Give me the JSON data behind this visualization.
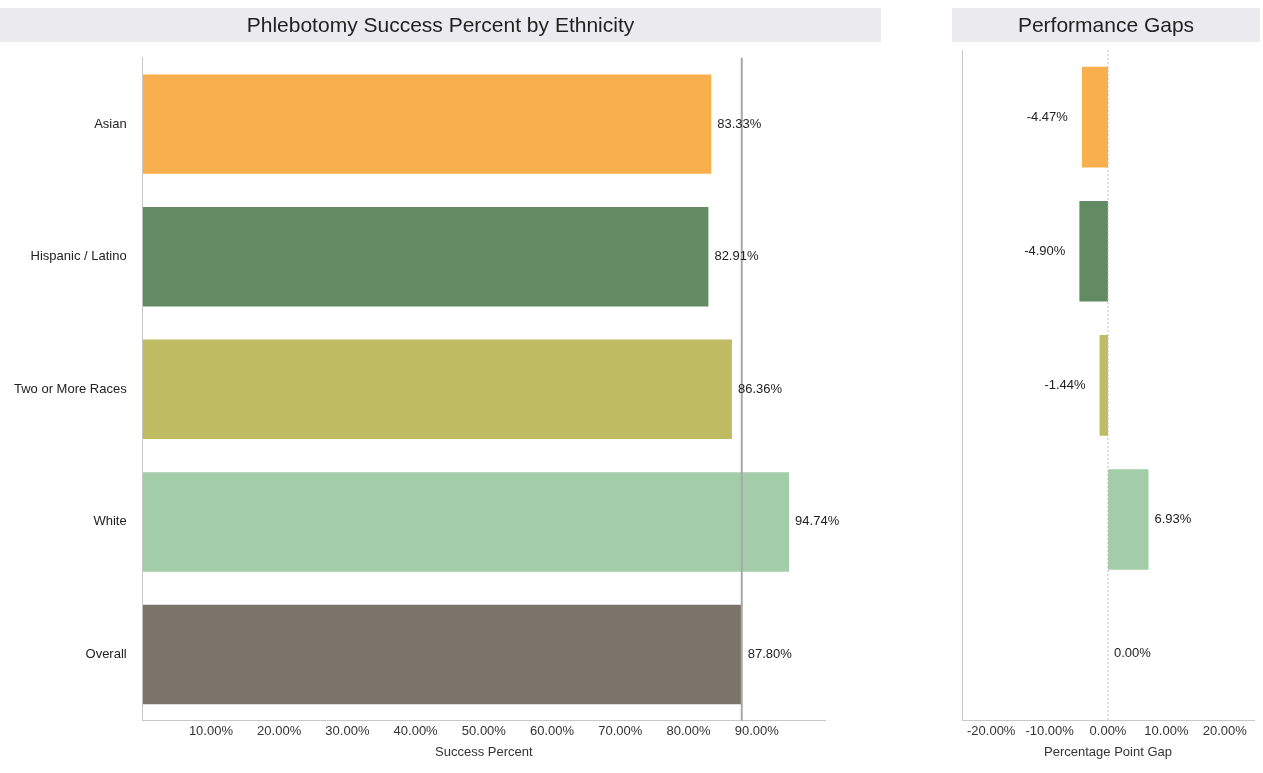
{
  "chart_data": [
    {
      "type": "bar",
      "orientation": "horizontal",
      "title": "Phlebotomy Success Percent by Ethnicity",
      "xlabel": "Success Percent",
      "categories": [
        "Asian",
        "Hispanic / Latino",
        "Two or More Races",
        "White",
        "Overall"
      ],
      "values": [
        83.33,
        82.91,
        86.36,
        94.74,
        87.8
      ],
      "colors": [
        "#f9af4d",
        "#628b64",
        "#bfbb62",
        "#a3cda9",
        "#7c746b"
      ],
      "value_labels": [
        "83.33%",
        "82.91%",
        "86.36%",
        "94.74%",
        "87.80%"
      ],
      "xlim": [
        0,
        100
      ],
      "xticks": [
        {
          "value": 10,
          "label": "10.00%"
        },
        {
          "value": 20,
          "label": "20.00%"
        },
        {
          "value": 30,
          "label": "30.00%"
        },
        {
          "value": 40,
          "label": "40.00%"
        },
        {
          "value": 50,
          "label": "50.00%"
        },
        {
          "value": 60,
          "label": "60.00%"
        },
        {
          "value": 70,
          "label": "70.00%"
        },
        {
          "value": 80,
          "label": "80.00%"
        },
        {
          "value": 90,
          "label": "90.00%"
        }
      ],
      "ref_lines": [
        {
          "axis": "x",
          "value": 87.8,
          "label": null,
          "color": "#a8a8a8",
          "line_style": "solid"
        }
      ],
      "grid": false,
      "legend": false
    },
    {
      "type": "bar",
      "orientation": "horizontal",
      "title": "Performance Gaps",
      "xlabel": "Percentage Point Gap",
      "categories": [
        null,
        null,
        null,
        null,
        null
      ],
      "values": [
        -4.47,
        -4.9,
        -1.44,
        6.93,
        0
      ],
      "colors": [
        "#f9af4d",
        "#628b64",
        "#bfbb62",
        "#a3cda9",
        "#7c746b"
      ],
      "value_labels": [
        "-4.47%",
        "-4.90%",
        "-1.44%",
        "6.93%",
        "0.00%"
      ],
      "xlim": [
        -25,
        25
      ],
      "xticks": [
        {
          "value": -20,
          "label": "-20.00%"
        },
        {
          "value": -10,
          "label": "-10.00%"
        },
        {
          "value": 0,
          "label": "0.00%"
        },
        {
          "value": 10,
          "label": "10.00%"
        },
        {
          "value": 20,
          "label": "20.00%"
        }
      ],
      "ref_lines": [
        {
          "axis": "x",
          "value": 0,
          "label": null,
          "color": "#bdbdbd",
          "line_style": "dotted"
        }
      ],
      "tick_labels": "x",
      "grid": false,
      "legend": false
    }
  ]
}
